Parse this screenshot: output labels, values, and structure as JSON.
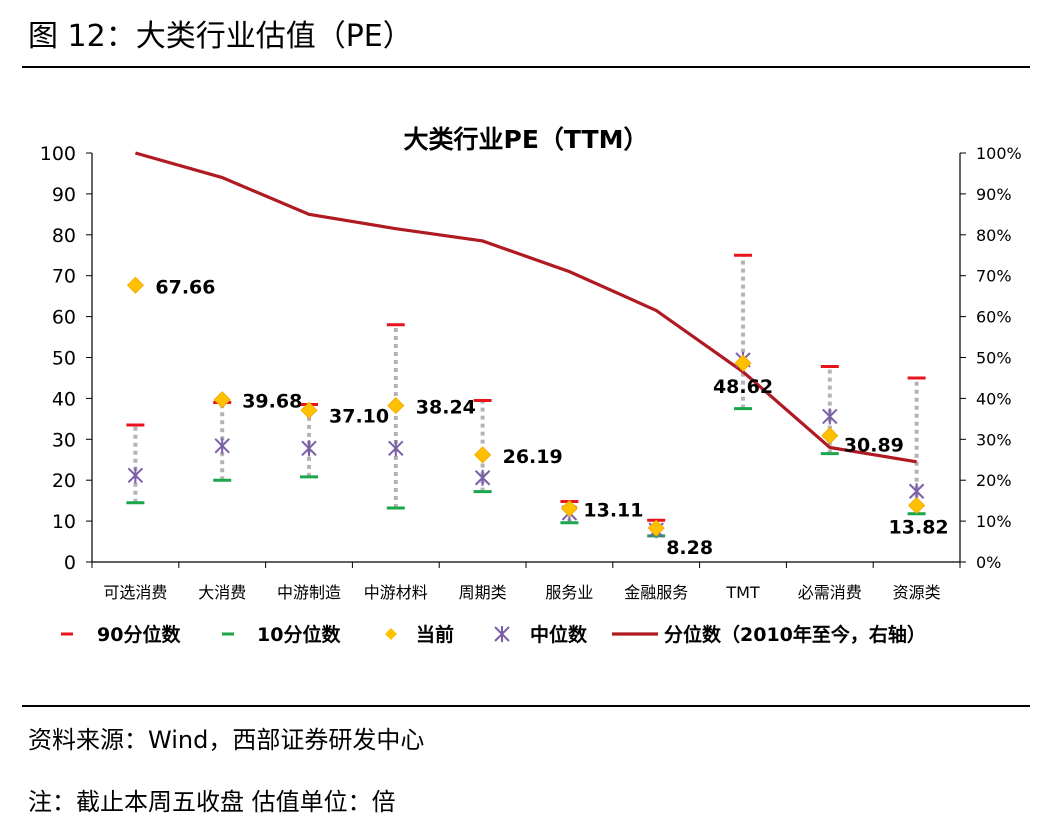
{
  "figure": {
    "caption": "图 12：大类行业估值（PE）",
    "source": "资料来源：Wind，西部证券研发中心",
    "note": "注：截止本周五收盘 估值单位：倍"
  },
  "colors": {
    "p90": "#e8141b",
    "p10": "#1aa64b",
    "current": "#ffc000",
    "median": "#7b5ea7",
    "percentile": "#b01a22",
    "range_line": "#b3b3b3"
  },
  "chart_data": {
    "type": "line",
    "title": "大类行业PE（TTM）",
    "categories": [
      "可选消费",
      "大消费",
      "中游制造",
      "中游材料",
      "周期类",
      "服务业",
      "金融服务",
      "TMT",
      "必需消费",
      "资源类"
    ],
    "y_left": {
      "range": [
        0,
        100
      ],
      "ticks": [
        "0",
        "10",
        "20",
        "30",
        "40",
        "50",
        "60",
        "70",
        "80",
        "90",
        "100"
      ]
    },
    "y_right": {
      "range": [
        0,
        1
      ],
      "ticks": [
        "0%",
        "10%",
        "20%",
        "30%",
        "40%",
        "50%",
        "60%",
        "70%",
        "80%",
        "90%",
        "100%"
      ]
    },
    "series": [
      {
        "key": "p90",
        "name": "90分位数",
        "values": [
          33.5,
          39,
          38.5,
          58,
          39.5,
          14.8,
          10.2,
          75,
          47.8,
          45
        ]
      },
      {
        "key": "p10",
        "name": "10分位数",
        "values": [
          14.5,
          20,
          20.8,
          13.2,
          17.2,
          9.6,
          6.4,
          37.5,
          26.5,
          11.8
        ]
      },
      {
        "key": "current",
        "name": "当前",
        "values": [
          67.66,
          39.68,
          37.1,
          38.24,
          26.19,
          13.11,
          8.28,
          48.62,
          30.89,
          13.82
        ]
      },
      {
        "key": "median",
        "name": "中位数",
        "values": [
          21.2,
          28.4,
          27.8,
          27.8,
          20.6,
          12,
          7.8,
          49.4,
          35.6,
          17.3
        ]
      },
      {
        "key": "percentile",
        "name": "分位数（2010年至今，右轴）",
        "axis": "right",
        "values": [
          1.0,
          0.94,
          0.85,
          0.815,
          0.785,
          0.71,
          0.615,
          0.465,
          0.28,
          0.245
        ]
      }
    ],
    "data_labels": [
      "67.66",
      "39.68",
      "37.10",
      "38.24",
      "26.19",
      "13.11",
      "8.28",
      "48.62",
      "30.89",
      "13.82"
    ],
    "legend_position": "bottom",
    "grid": false
  }
}
